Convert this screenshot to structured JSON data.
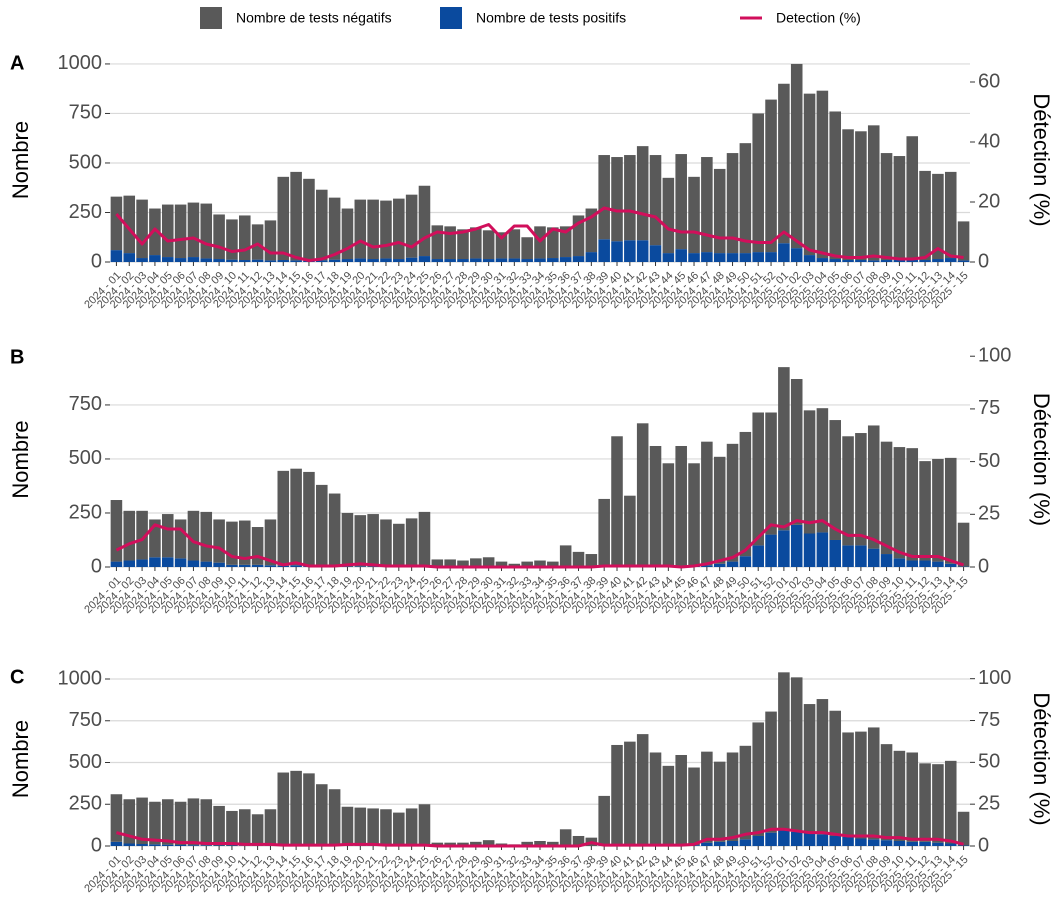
{
  "chart_data": [
    {
      "type": "bar",
      "title": "A",
      "ylabel": "Nombre",
      "y2label": "Détection (%)",
      "legend": "top",
      "grid": true,
      "categories": [
        "2024 - 01",
        "2024 - 02",
        "2024 - 03",
        "2024 - 04",
        "2024 - 05",
        "2024 - 06",
        "2024 - 07",
        "2024 - 08",
        "2024 - 09",
        "2024 - 10",
        "2024 - 11",
        "2024 - 12",
        "2024 - 13",
        "2024 - 14",
        "2024 - 15",
        "2024 - 16",
        "2024 - 17",
        "2024 - 18",
        "2024 - 19",
        "2024 - 20",
        "2024 - 21",
        "2024 - 22",
        "2024 - 23",
        "2024 - 24",
        "2024 - 25",
        "2024 - 26",
        "2024 - 27",
        "2024 - 28",
        "2024 - 29",
        "2024 - 30",
        "2024 - 31",
        "2024 - 32",
        "2024 - 33",
        "2024 - 34",
        "2024 - 35",
        "2024 - 36",
        "2024 - 37",
        "2024 - 38",
        "2024 - 39",
        "2024 - 40",
        "2024 - 41",
        "2024 - 42",
        "2024 - 43",
        "2024 - 44",
        "2024 - 45",
        "2024 - 46",
        "2024 - 47",
        "2024 - 48",
        "2024 - 49",
        "2024 - 50",
        "2024 - 51",
        "2024 - 52",
        "2025 - 01",
        "2025 - 02",
        "2025 - 03",
        "2025 - 04",
        "2025 - 05",
        "2025 - 06",
        "2025 - 07",
        "2025 - 08",
        "2025 - 09",
        "2025 - 10",
        "2025 - 11",
        "2025 - 12",
        "2025 - 13",
        "2025 - 14",
        "2025 - 15"
      ],
      "ylim": [
        0,
        1030
      ],
      "yticks": [
        0,
        250,
        500,
        750,
        1000
      ],
      "y2lim": [
        0,
        68
      ],
      "y2ticks": [
        0,
        20,
        40,
        60
      ],
      "series": [
        {
          "name": "Nombre de tests négatifs",
          "color": "#595959",
          "values": [
            270,
            290,
            295,
            235,
            265,
            270,
            275,
            277,
            225,
            203,
            225,
            178,
            202,
            420,
            447,
            415,
            357,
            313,
            255,
            297,
            300,
            292,
            305,
            318,
            355,
            170,
            165,
            150,
            157,
            145,
            132,
            147,
            110,
            162,
            155,
            155,
            205,
            220,
            425,
            425,
            430,
            475,
            455,
            380,
            480,
            385,
            480,
            425,
            505,
            555,
            700,
            770,
            805,
            930,
            815,
            845,
            745,
            660,
            650,
            682,
            540,
            525,
            625,
            450,
            430,
            435,
            197
          ]
        },
        {
          "name": "Nombre de tests positifs",
          "color": "#0a4a9e",
          "values": [
            60,
            45,
            20,
            35,
            25,
            20,
            25,
            18,
            15,
            12,
            10,
            12,
            8,
            10,
            8,
            5,
            8,
            12,
            15,
            18,
            15,
            18,
            15,
            22,
            30,
            15,
            15,
            15,
            18,
            15,
            18,
            18,
            15,
            18,
            20,
            25,
            30,
            50,
            115,
            105,
            110,
            110,
            85,
            45,
            65,
            45,
            50,
            45,
            45,
            45,
            50,
            50,
            95,
            70,
            35,
            20,
            15,
            10,
            10,
            8,
            10,
            10,
            10,
            10,
            15,
            20,
            8
          ]
        },
        {
          "name": "Detection (%)",
          "color": "#d10f5b",
          "axis": "y2",
          "values": [
            16,
            11,
            6,
            11,
            7,
            7.5,
            8,
            6,
            5,
            3.5,
            4,
            6,
            3,
            3,
            1.5,
            0.5,
            1,
            2.5,
            4.5,
            7,
            5,
            5.5,
            6.5,
            5,
            8,
            10,
            9.5,
            10,
            11,
            12.5,
            8,
            12,
            12,
            7,
            11,
            10,
            13,
            15,
            18,
            17,
            17,
            16,
            15,
            11,
            10,
            10,
            9,
            8,
            8,
            7,
            6.5,
            6.5,
            10,
            7,
            4,
            3,
            2,
            1.5,
            1.5,
            2,
            1.5,
            1,
            1,
            1.5,
            4.5,
            2,
            1.5
          ]
        }
      ]
    },
    {
      "type": "bar",
      "title": "B",
      "ylabel": "Nombre",
      "y2label": "Détection (%)",
      "grid": true,
      "categories": [
        "2024 - 01",
        "2024 - 02",
        "2024 - 03",
        "2024 - 04",
        "2024 - 05",
        "2024 - 06",
        "2024 - 07",
        "2024 - 08",
        "2024 - 09",
        "2024 - 10",
        "2024 - 11",
        "2024 - 12",
        "2024 - 13",
        "2024 - 14",
        "2024 - 15",
        "2024 - 16",
        "2024 - 17",
        "2024 - 18",
        "2024 - 19",
        "2024 - 20",
        "2024 - 21",
        "2024 - 22",
        "2024 - 23",
        "2024 - 24",
        "2024 - 25",
        "2024 - 26",
        "2024 - 27",
        "2024 - 28",
        "2024 - 29",
        "2024 - 30",
        "2024 - 31",
        "2024 - 32",
        "2024 - 33",
        "2024 - 34",
        "2024 - 35",
        "2024 - 36",
        "2024 - 37",
        "2024 - 38",
        "2024 - 39",
        "2024 - 40",
        "2024 - 41",
        "2024 - 42",
        "2024 - 43",
        "2024 - 44",
        "2024 - 45",
        "2024 - 46",
        "2024 - 47",
        "2024 - 48",
        "2024 - 49",
        "2024 - 50",
        "2024 - 51",
        "2024 - 52",
        "2025 - 01",
        "2025 - 02",
        "2025 - 03",
        "2025 - 04",
        "2025 - 05",
        "2025 - 06",
        "2025 - 07",
        "2025 - 08",
        "2025 - 09",
        "2025 - 10",
        "2025 - 11",
        "2025 - 12",
        "2025 - 13",
        "2025 - 14",
        "2025 - 15"
      ],
      "ylim": [
        0,
        995
      ],
      "yticks": [
        0,
        250,
        500,
        750
      ],
      "y2lim": [
        0,
        102
      ],
      "y2ticks": [
        0,
        25,
        50,
        75,
        100
      ],
      "series": [
        {
          "color": "#595959",
          "values": [
            285,
            230,
            225,
            175,
            200,
            180,
            230,
            230,
            200,
            200,
            205,
            175,
            212,
            440,
            447,
            437,
            378,
            338,
            248,
            237,
            243,
            219,
            199,
            224,
            254,
            35,
            35,
            30,
            40,
            45,
            25,
            15,
            25,
            30,
            25,
            100,
            70,
            60,
            314,
            603,
            328,
            662,
            558,
            479,
            558,
            477,
            572,
            495,
            545,
            575,
            615,
            565,
            755,
            675,
            570,
            575,
            555,
            505,
            520,
            570,
            520,
            515,
            520,
            460,
            475,
            490,
            203
          ]
        },
        {
          "color": "#0a4a9e",
          "values": [
            25,
            30,
            35,
            45,
            45,
            40,
            30,
            25,
            20,
            10,
            10,
            10,
            8,
            5,
            8,
            3,
            2,
            2,
            2,
            3,
            2,
            1,
            1,
            1,
            1,
            0,
            0,
            0,
            0,
            0,
            0,
            0,
            0,
            0,
            0,
            0,
            0,
            0,
            1,
            2,
            2,
            3,
            2,
            1,
            2,
            3,
            8,
            15,
            25,
            50,
            100,
            150,
            170,
            195,
            155,
            160,
            125,
            100,
            100,
            85,
            60,
            40,
            30,
            30,
            25,
            15,
            2
          ]
        },
        {
          "color": "#d10f5b",
          "axis": "y2",
          "values": [
            8,
            11,
            13,
            20,
            18,
            18,
            12,
            10,
            9,
            5,
            4,
            5,
            3,
            1,
            2,
            0.5,
            0.5,
            0.5,
            1,
            1.5,
            1,
            0.5,
            0.5,
            0.5,
            0.5,
            0,
            0,
            0,
            0,
            0,
            0,
            0,
            0,
            0,
            0,
            0,
            0,
            0,
            0.5,
            0.5,
            0.5,
            0.5,
            0.5,
            0.5,
            0,
            0.5,
            1.5,
            3,
            4.5,
            8,
            14,
            20,
            19,
            22,
            21,
            22,
            18,
            15,
            15,
            13,
            10,
            7,
            5,
            5,
            5,
            3,
            1
          ]
        }
      ]
    },
    {
      "type": "bar",
      "title": "C",
      "ylabel": "Nombre",
      "y2label": "Détection (%)",
      "grid": true,
      "categories": [
        "2024 - 01",
        "2024 - 02",
        "2024 - 03",
        "2024 - 04",
        "2024 - 05",
        "2024 - 06",
        "2024 - 07",
        "2024 - 08",
        "2024 - 09",
        "2024 - 10",
        "2024 - 11",
        "2024 - 12",
        "2024 - 13",
        "2024 - 14",
        "2024 - 15",
        "2024 - 16",
        "2024 - 17",
        "2024 - 18",
        "2024 - 19",
        "2024 - 20",
        "2024 - 21",
        "2024 - 22",
        "2024 - 23",
        "2024 - 24",
        "2024 - 25",
        "2024 - 26",
        "2024 - 27",
        "2024 - 28",
        "2024 - 29",
        "2024 - 30",
        "2024 - 31",
        "2024 - 32",
        "2024 - 33",
        "2024 - 34",
        "2024 - 35",
        "2024 - 36",
        "2024 - 37",
        "2024 - 38",
        "2024 - 39",
        "2024 - 40",
        "2024 - 41",
        "2024 - 42",
        "2024 - 43",
        "2024 - 44",
        "2024 - 45",
        "2024 - 46",
        "2024 - 47",
        "2024 - 48",
        "2024 - 49",
        "2024 - 50",
        "2024 - 51",
        "2024 - 52",
        "2025 - 01",
        "2025 - 02",
        "2025 - 03",
        "2025 - 04",
        "2025 - 05",
        "2025 - 06",
        "2025 - 07",
        "2025 - 08",
        "2025 - 09",
        "2025 - 10",
        "2025 - 11",
        "2025 - 12",
        "2025 - 13",
        "2025 - 14",
        "2025 - 15"
      ],
      "ylim": [
        0,
        1042
      ],
      "yticks": [
        0,
        250,
        500,
        750,
        1000
      ],
      "y2lim": [
        0,
        104
      ],
      "y2ticks": [
        0,
        25,
        50,
        75,
        100
      ],
      "series": [
        {
          "color": "#595959",
          "values": [
            285,
            265,
            278,
            255,
            272,
            259,
            280,
            276,
            237,
            207,
            218,
            188,
            218,
            438,
            447,
            432,
            368,
            338,
            233,
            228,
            223,
            219,
            199,
            224,
            249,
            20,
            20,
            20,
            25,
            35,
            15,
            10,
            25,
            30,
            25,
            100,
            60,
            50,
            298,
            604,
            624,
            668,
            558,
            478,
            542,
            465,
            545,
            480,
            530,
            560,
            680,
            725,
            945,
            925,
            770,
            810,
            750,
            625,
            640,
            670,
            575,
            540,
            535,
            470,
            470,
            495,
            202
          ]
        },
        {
          "color": "#0a4a9e",
          "values": [
            25,
            15,
            12,
            10,
            8,
            6,
            5,
            4,
            3,
            3,
            2,
            2,
            2,
            2,
            3,
            3,
            2,
            2,
            2,
            2,
            2,
            1,
            1,
            1,
            1,
            0,
            0,
            0,
            0,
            0,
            0,
            0,
            0,
            0,
            0,
            0,
            0,
            0,
            2,
            1,
            1,
            2,
            2,
            2,
            3,
            5,
            20,
            25,
            30,
            40,
            60,
            80,
            95,
            85,
            80,
            70,
            60,
            55,
            45,
            40,
            35,
            30,
            25,
            25,
            20,
            15,
            3
          ]
        },
        {
          "color": "#d10f5b",
          "axis": "y2",
          "values": [
            8,
            6,
            4,
            3.5,
            3,
            2,
            2,
            1.5,
            1.5,
            1.5,
            1,
            1,
            1,
            0.5,
            0.5,
            0.5,
            0.5,
            0.5,
            1,
            1,
            1,
            0.5,
            0.5,
            0.5,
            0.5,
            0,
            0,
            0,
            0,
            0,
            0,
            0,
            0,
            0,
            0,
            0,
            0,
            2,
            0.5,
            0.5,
            0.5,
            0.5,
            0.5,
            0.5,
            0.5,
            1,
            4,
            4,
            5,
            7,
            8,
            10,
            10,
            9,
            8,
            8,
            7,
            6,
            6,
            6,
            5,
            5,
            4,
            4,
            4,
            3,
            1
          ]
        }
      ]
    }
  ]
}
